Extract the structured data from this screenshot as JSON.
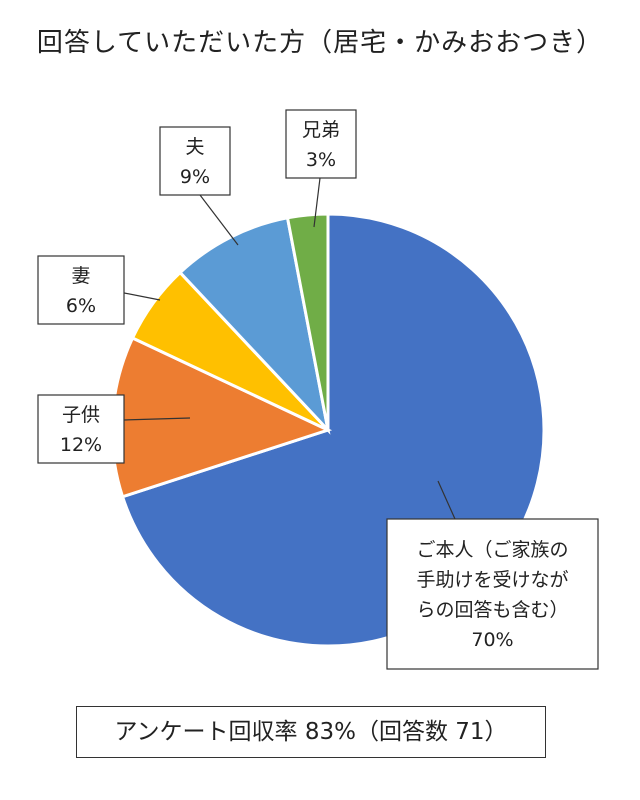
{
  "chart_data": {
    "type": "pie",
    "title": "回答していただいた方（居宅・かみおおつき）",
    "categories": [
      "ご本人（ご家族の手助けを受けながらの回答も含む）",
      "子供",
      "妻",
      "夫",
      "兄弟"
    ],
    "values": [
      70,
      12,
      6,
      9,
      3
    ],
    "value_labels": [
      "70%",
      "12%",
      "6%",
      "9%",
      "3%"
    ],
    "label_lines": [
      [
        "ご本人（ご家族の",
        "手助けを受けなが",
        "らの回答も含む）"
      ],
      [
        "子供"
      ],
      [
        "妻"
      ],
      [
        "夫"
      ],
      [
        "兄弟"
      ]
    ],
    "colors": [
      "#4472C4",
      "#ED7D31",
      "#FFC000",
      "#5B9BD5",
      "#70AD47"
    ],
    "start_angle_deg": 0,
    "direction": "clockwise",
    "legend": "none",
    "data_labels": "callouts"
  },
  "footer": {
    "text": "アンケート回収率 83%（回答数 71）"
  }
}
